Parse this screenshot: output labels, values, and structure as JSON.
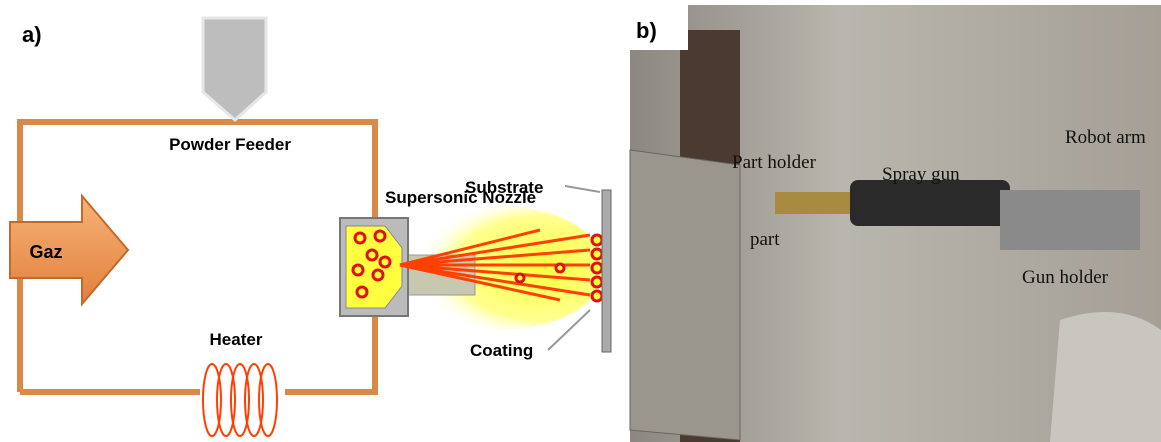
{
  "panel_a": {
    "label": "a)",
    "powder_feeder": "Powder Feeder",
    "gas": "Gaz",
    "nozzle": "Supersonic Nozzle",
    "substrate": "Substrate",
    "coating": "Coating",
    "heater": "Heater"
  },
  "panel_b": {
    "label": "b)",
    "part_holder": "Part holder",
    "spray_gun": "Spray gun",
    "robot_arm": "Robot arm",
    "part": "part",
    "gun_holder": "Gun holder"
  }
}
